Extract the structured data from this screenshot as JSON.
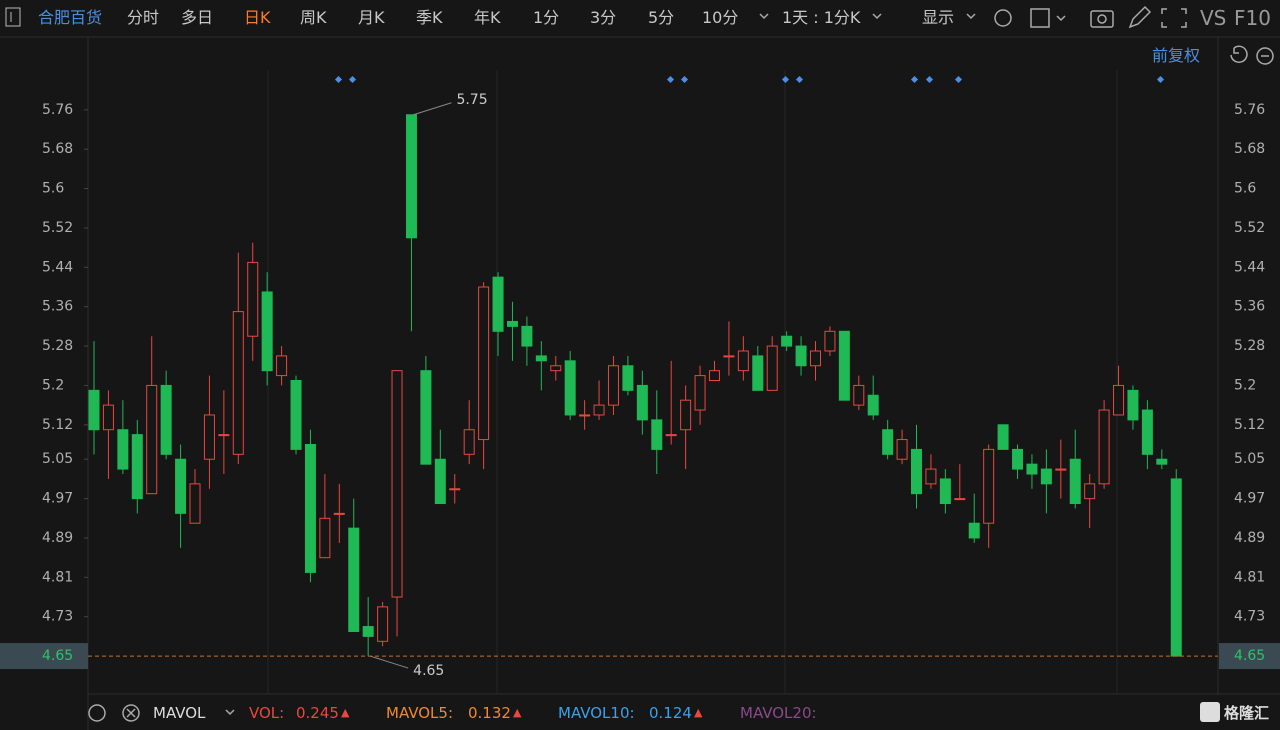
{
  "toolbar": {
    "stock": "合肥百货",
    "tabs": [
      "分时",
      "多日",
      "日K",
      "周K",
      "月K",
      "季K",
      "年K",
      "1分",
      "3分",
      "5分",
      "10分"
    ],
    "active_tab": 2,
    "period": "1天 : 1分K",
    "display": "显示",
    "vs": "VS",
    "f10": "F10"
  },
  "adjust": "前复权",
  "chart_data": {
    "type": "candlestick",
    "ylim": [
      4.577,
      5.841
    ],
    "yticks": [
      5.76,
      5.68,
      5.6,
      5.52,
      5.44,
      5.36,
      5.28,
      5.2,
      5.12,
      5.05,
      4.97,
      4.89,
      4.81,
      4.73,
      4.65
    ],
    "up_color": "#e8483f",
    "down_color": "#1fb955",
    "series": {
      "open": [
        5.19,
        5.11,
        5.11,
        5.1,
        4.98,
        5.2,
        5.05,
        4.92,
        5.05,
        5.1,
        5.06,
        5.3,
        5.39,
        5.22,
        5.21,
        5.08,
        4.85,
        4.94,
        4.91,
        4.71,
        4.68,
        4.77,
        5.75,
        5.23,
        5.05,
        4.99,
        5.06,
        5.09,
        5.42,
        5.33,
        5.32,
        5.26,
        5.23,
        5.25,
        5.14,
        5.14,
        5.16,
        5.24,
        5.2,
        5.13,
        5.1,
        5.11,
        5.15,
        5.21,
        5.26,
        5.23,
        5.26,
        5.19,
        5.3,
        5.28,
        5.24,
        5.27,
        5.31,
        5.16,
        5.18,
        5.11,
        5.05,
        5.07,
        5.0,
        5.01,
        4.97,
        4.92,
        4.92,
        5.12,
        5.07,
        5.04,
        5.03,
        5.03,
        5.05,
        4.97,
        5.0,
        5.14,
        5.19,
        5.15,
        5.05,
        5.01
      ],
      "high": [
        5.29,
        5.19,
        5.17,
        5.13,
        5.3,
        5.23,
        5.08,
        5.03,
        5.22,
        5.19,
        5.47,
        5.49,
        5.43,
        5.28,
        5.22,
        5.11,
        5.02,
        5.0,
        4.97,
        4.77,
        4.76,
        5.23,
        5.75,
        5.26,
        5.11,
        5.02,
        5.17,
        5.41,
        5.43,
        5.37,
        5.34,
        5.29,
        5.26,
        5.27,
        5.17,
        5.21,
        5.26,
        5.26,
        5.23,
        5.19,
        5.25,
        5.2,
        5.24,
        5.25,
        5.33,
        5.3,
        5.28,
        5.3,
        5.31,
        5.3,
        5.29,
        5.32,
        5.31,
        5.22,
        5.22,
        5.13,
        5.11,
        5.12,
        5.06,
        5.03,
        5.04,
        4.98,
        5.08,
        5.12,
        5.08,
        5.06,
        5.07,
        5.09,
        5.11,
        5.02,
        5.17,
        5.24,
        5.2,
        5.17,
        5.07,
        5.03
      ],
      "low": [
        5.06,
        5.01,
        5.02,
        4.94,
        4.98,
        5.05,
        4.87,
        4.92,
        4.99,
        5.02,
        5.04,
        5.25,
        5.2,
        5.2,
        5.06,
        4.8,
        4.85,
        4.88,
        4.7,
        4.65,
        4.67,
        4.69,
        5.31,
        5.04,
        4.96,
        4.96,
        5.04,
        5.03,
        5.26,
        5.25,
        5.24,
        5.19,
        5.21,
        5.13,
        5.11,
        5.13,
        5.14,
        5.18,
        5.1,
        5.02,
        5.08,
        5.03,
        5.12,
        5.21,
        5.22,
        5.21,
        5.19,
        5.19,
        5.27,
        5.22,
        5.21,
        5.26,
        5.17,
        5.15,
        5.13,
        5.05,
        5.04,
        4.95,
        4.99,
        4.94,
        4.97,
        4.88,
        4.87,
        5.07,
        5.01,
        4.99,
        4.94,
        4.97,
        4.95,
        4.91,
        4.99,
        5.14,
        5.11,
        5.03,
        5.03,
        4.65
      ],
      "close": [
        5.11,
        5.16,
        5.03,
        4.97,
        5.2,
        5.06,
        4.94,
        5.0,
        5.14,
        5.1,
        5.35,
        5.45,
        5.23,
        5.26,
        5.07,
        4.82,
        4.93,
        4.94,
        4.7,
        4.69,
        4.75,
        5.23,
        5.5,
        5.04,
        4.96,
        4.99,
        5.11,
        5.4,
        5.31,
        5.32,
        5.28,
        5.25,
        5.24,
        5.14,
        5.14,
        5.16,
        5.24,
        5.19,
        5.13,
        5.07,
        5.1,
        5.17,
        5.22,
        5.23,
        5.26,
        5.27,
        5.19,
        5.28,
        5.28,
        5.24,
        5.27,
        5.31,
        5.17,
        5.2,
        5.14,
        5.06,
        5.09,
        4.98,
        5.03,
        4.96,
        4.97,
        4.89,
        5.07,
        5.07,
        5.03,
        5.02,
        5.0,
        5.03,
        4.96,
        5.0,
        5.15,
        5.2,
        5.13,
        5.06,
        5.04,
        4.65
      ]
    },
    "high_label": 5.75,
    "low_label": 4.65,
    "last_price": 4.65
  },
  "footer": {
    "indicator": "MAVOL",
    "vol_label": "VOL:",
    "vol": "0.245",
    "mavol5_label": "MAVOL5:",
    "mavol5": "0.132",
    "mavol10_label": "MAVOL10:",
    "mavol10": "0.124",
    "mavol20_label": "MAVOL20:",
    "brand": "格隆汇"
  }
}
